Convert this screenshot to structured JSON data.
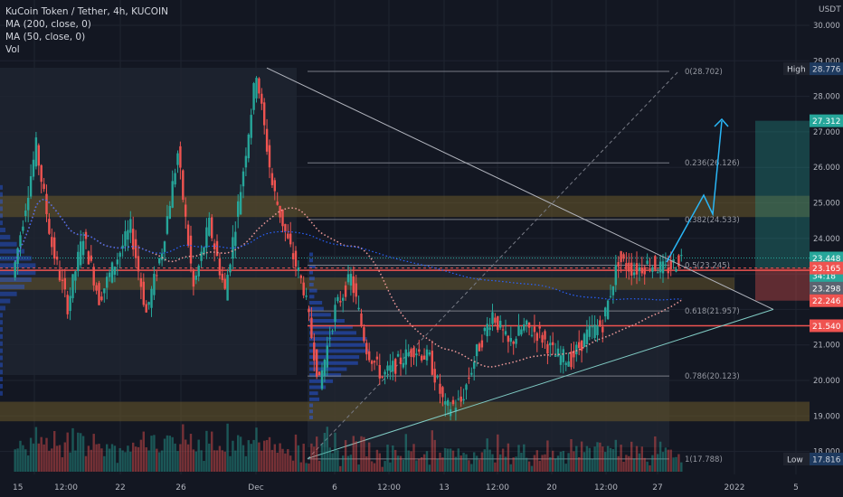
{
  "legend": {
    "title": "KuCoin Token / Tether, 4h, KUCOIN",
    "ma200": "MA (200, close, 0)",
    "ma50": "MA (50, close, 0)",
    "vol": "Vol"
  },
  "currency": "USDT",
  "price_ticks": [
    "30.000",
    "29.000",
    "28.000",
    "27.000",
    "26.000",
    "25.000",
    "24.000",
    "21.000",
    "20.000",
    "19.000",
    "18.000"
  ],
  "time_ticks": [
    "15",
    "12:00",
    "22",
    "26",
    "Dec",
    "6",
    "12:00",
    "13",
    "12:00",
    "20",
    "12:00",
    "27",
    "2022",
    "5"
  ],
  "labels": {
    "high_label": "High",
    "high_value": "28.776",
    "target_value": "27.312",
    "last_value": "23.448",
    "last_countdown": "34:18",
    "ma50_value": "23.298",
    "red_value": "23.165",
    "stop_value": "22.246",
    "support_value": "21.540",
    "low_label": "Low",
    "low_value": "17.816"
  },
  "fib_levels": [
    {
      "ratio": "0",
      "price": "28.702",
      "label": "0(28.702)"
    },
    {
      "ratio": "0.236",
      "price": "26.126",
      "label": "0.236(26.126)"
    },
    {
      "ratio": "0.382",
      "price": "24.533",
      "label": "0.382(24.533)"
    },
    {
      "ratio": "0.5",
      "price": "23.245",
      "label": "0.5(23.245)"
    },
    {
      "ratio": "0.618",
      "price": "21.957",
      "label": "0.618(21.957)"
    },
    {
      "ratio": "0.786",
      "price": "20.123",
      "label": "0.786(20.123)"
    },
    {
      "ratio": "1",
      "price": "17.788",
      "label": "1(17.788)"
    }
  ],
  "colors": {
    "background": "#131722",
    "up": "#26a69a",
    "down": "#ef5350",
    "fib": "#787b86",
    "ma50": "#ef9a9a",
    "ma200": "#2962ff",
    "arrow": "#29b6f6",
    "zone": "#6b5a2a",
    "target": "#26a69a",
    "stop": "#ef5350"
  },
  "chart_data": {
    "type": "candlestick",
    "title": "KuCoin Token / Tether, 4h, KUCOIN",
    "ylim": [
      17.8,
      30.5
    ],
    "grid": true,
    "series_anchors": [
      {
        "x": "Nov 14 12:00",
        "price": 22.9
      },
      {
        "x": "Nov 16",
        "price": 26.6
      },
      {
        "x": "Nov 17",
        "price": 23.8
      },
      {
        "x": "Nov 18",
        "price": 22.1
      },
      {
        "x": "Nov 19",
        "price": 24.1
      },
      {
        "x": "Nov 20",
        "price": 22.3
      },
      {
        "x": "Nov 22",
        "price": 24.3
      },
      {
        "x": "Nov 23",
        "price": 21.9
      },
      {
        "x": "Nov 24",
        "price": 23.7
      },
      {
        "x": "Nov 25",
        "price": 26.4
      },
      {
        "x": "Nov 26",
        "price": 22.6
      },
      {
        "x": "Nov 27",
        "price": 24.4
      },
      {
        "x": "Nov 28",
        "price": 22.5
      },
      {
        "x": "Nov 29",
        "price": 25.4
      },
      {
        "x": "Nov 30",
        "price": 28.7
      },
      {
        "x": "Dec 1",
        "price": 25.5
      },
      {
        "x": "Dec 2",
        "price": 23.9
      },
      {
        "x": "Dec 3",
        "price": 22.6
      },
      {
        "x": "Dec 4",
        "price": 19.9
      },
      {
        "x": "Dec 5",
        "price": 22.0
      },
      {
        "x": "Dec 6",
        "price": 22.9
      },
      {
        "x": "Dec 7",
        "price": 20.9
      },
      {
        "x": "Dec 8",
        "price": 20.1
      },
      {
        "x": "Dec 9",
        "price": 20.5
      },
      {
        "x": "Dec 10",
        "price": 20.9
      },
      {
        "x": "Dec 11",
        "price": 20.6
      },
      {
        "x": "Dec 12",
        "price": 19.2
      },
      {
        "x": "Dec 13",
        "price": 19.4
      },
      {
        "x": "Dec 14",
        "price": 20.8
      },
      {
        "x": "Dec 15",
        "price": 21.9
      },
      {
        "x": "Dec 16",
        "price": 21.0
      },
      {
        "x": "Dec 17",
        "price": 21.5
      },
      {
        "x": "Dec 18",
        "price": 21.3
      },
      {
        "x": "Dec 19",
        "price": 20.7
      },
      {
        "x": "Dec 20",
        "price": 20.6
      },
      {
        "x": "Dec 21",
        "price": 21.3
      },
      {
        "x": "Dec 22",
        "price": 21.6
      },
      {
        "x": "Dec 23",
        "price": 23.4
      },
      {
        "x": "Dec 24",
        "price": 23.1
      },
      {
        "x": "Dec 25",
        "price": 23.3
      },
      {
        "x": "Dec 26",
        "price": 23.1
      },
      {
        "x": "Dec 27",
        "price": 23.45
      }
    ]
  }
}
